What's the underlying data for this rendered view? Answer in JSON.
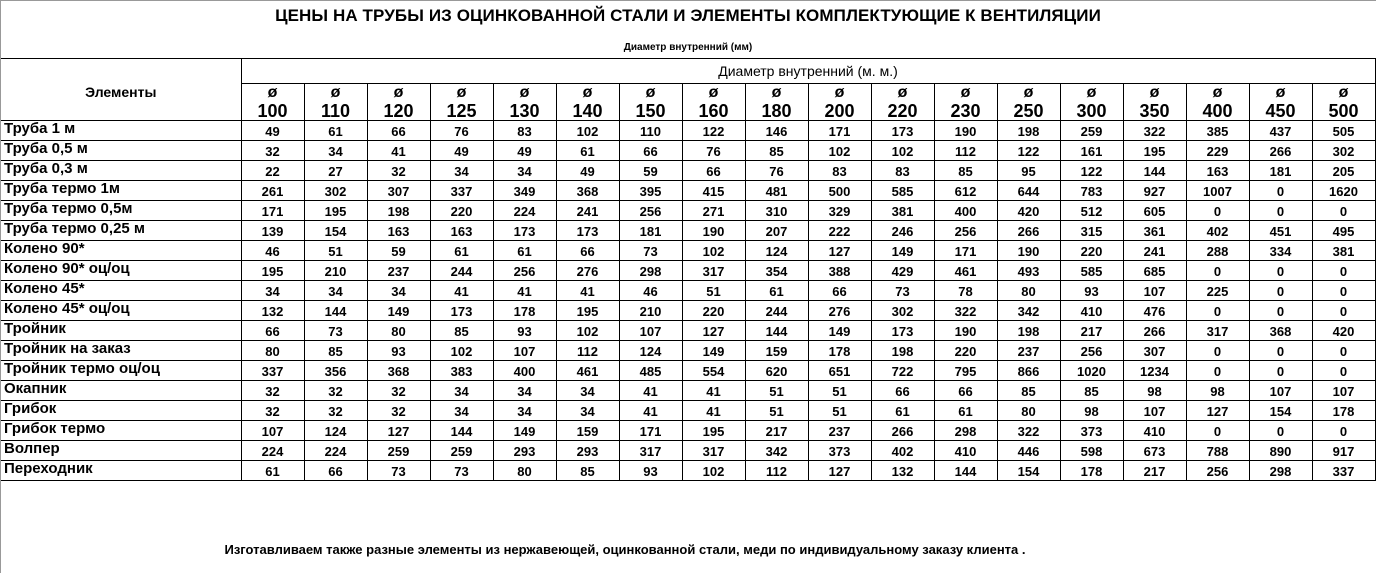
{
  "title": "ЦЕНЫ НА ТРУБЫ ИЗ ОЦИНКОВАННОЙ СТАЛИ И ЭЛЕМЕНТЫ КОМПЛЕКТУЮЩИЕ К ВЕНТИЛЯЦИИ",
  "subtitle": "Диаметр внутренний (мм)",
  "table": {
    "elements_header": "Элементы",
    "group_header": "Диаметр внутренний (м. м.)",
    "diameter_symbol": "ø",
    "diameters": [
      "100",
      "110",
      "120",
      "125",
      "130",
      "140",
      "150",
      "160",
      "180",
      "200",
      "220",
      "230",
      "250",
      "300",
      "350",
      "400",
      "450",
      "500"
    ],
    "rows": [
      {
        "name": "Труба 1 м",
        "values": [
          "49",
          "61",
          "66",
          "76",
          "83",
          "102",
          "110",
          "122",
          "146",
          "171",
          "173",
          "190",
          "198",
          "259",
          "322",
          "385",
          "437",
          "505"
        ]
      },
      {
        "name": "Труба 0,5 м",
        "values": [
          "32",
          "34",
          "41",
          "49",
          "49",
          "61",
          "66",
          "76",
          "85",
          "102",
          "102",
          "112",
          "122",
          "161",
          "195",
          "229",
          "266",
          "302"
        ]
      },
      {
        "name": "Труба 0,3 м",
        "values": [
          "22",
          "27",
          "32",
          "34",
          "34",
          "49",
          "59",
          "66",
          "76",
          "83",
          "83",
          "85",
          "95",
          "122",
          "144",
          "163",
          "181",
          "205"
        ]
      },
      {
        "name": "Труба термо 1м",
        "values": [
          "261",
          "302",
          "307",
          "337",
          "349",
          "368",
          "395",
          "415",
          "481",
          "500",
          "585",
          "612",
          "644",
          "783",
          "927",
          "1007",
          "0",
          "1620"
        ]
      },
      {
        "name": "Труба термо 0,5м",
        "values": [
          "171",
          "195",
          "198",
          "220",
          "224",
          "241",
          "256",
          "271",
          "310",
          "329",
          "381",
          "400",
          "420",
          "512",
          "605",
          "0",
          "0",
          "0"
        ]
      },
      {
        "name": "Труба термо 0,25 м",
        "values": [
          "139",
          "154",
          "163",
          "163",
          "173",
          "173",
          "181",
          "190",
          "207",
          "222",
          "246",
          "256",
          "266",
          "315",
          "361",
          "402",
          "451",
          "495"
        ]
      },
      {
        "name": "Колено 90*",
        "values": [
          "46",
          "51",
          "59",
          "61",
          "61",
          "66",
          "73",
          "102",
          "124",
          "127",
          "149",
          "171",
          "190",
          "220",
          "241",
          "288",
          "334",
          "381"
        ]
      },
      {
        "name": "Колено 90* оц/оц",
        "values": [
          "195",
          "210",
          "237",
          "244",
          "256",
          "276",
          "298",
          "317",
          "354",
          "388",
          "429",
          "461",
          "493",
          "585",
          "685",
          "0",
          "0",
          "0"
        ]
      },
      {
        "name": "Колено 45*",
        "values": [
          "34",
          "34",
          "34",
          "41",
          "41",
          "41",
          "46",
          "51",
          "61",
          "66",
          "73",
          "78",
          "80",
          "93",
          "107",
          "225",
          "0",
          "0"
        ]
      },
      {
        "name": "Колено 45* оц/оц",
        "values": [
          "132",
          "144",
          "149",
          "173",
          "178",
          "195",
          "210",
          "220",
          "244",
          "276",
          "302",
          "322",
          "342",
          "410",
          "476",
          "0",
          "0",
          "0"
        ]
      },
      {
        "name": "Тройник",
        "values": [
          "66",
          "73",
          "80",
          "85",
          "93",
          "102",
          "107",
          "127",
          "144",
          "149",
          "173",
          "190",
          "198",
          "217",
          "266",
          "317",
          "368",
          "420"
        ]
      },
      {
        "name": "Тройник на заказ",
        "values": [
          "80",
          "85",
          "93",
          "102",
          "107",
          "112",
          "124",
          "149",
          "159",
          "178",
          "198",
          "220",
          "237",
          "256",
          "307",
          "0",
          "0",
          "0"
        ]
      },
      {
        "name": "Тройник термо оц/оц",
        "values": [
          "337",
          "356",
          "368",
          "383",
          "400",
          "461",
          "485",
          "554",
          "620",
          "651",
          "722",
          "795",
          "866",
          "1020",
          "1234",
          "0",
          "0",
          "0"
        ]
      },
      {
        "name": "Окапник",
        "values": [
          "32",
          "32",
          "32",
          "34",
          "34",
          "34",
          "41",
          "41",
          "51",
          "51",
          "66",
          "66",
          "85",
          "85",
          "98",
          "98",
          "107",
          "107"
        ]
      },
      {
        "name": "Грибок",
        "values": [
          "32",
          "32",
          "32",
          "34",
          "34",
          "34",
          "41",
          "41",
          "51",
          "51",
          "61",
          "61",
          "80",
          "98",
          "107",
          "127",
          "154",
          "178"
        ]
      },
      {
        "name": "Грибок термо",
        "values": [
          "107",
          "124",
          "127",
          "144",
          "149",
          "159",
          "171",
          "195",
          "217",
          "237",
          "266",
          "298",
          "322",
          "373",
          "410",
          "0",
          "0",
          "0"
        ]
      },
      {
        "name": "Волпер",
        "values": [
          "224",
          "224",
          "259",
          "259",
          "293",
          "293",
          "317",
          "317",
          "342",
          "373",
          "402",
          "410",
          "446",
          "598",
          "673",
          "788",
          "890",
          "917"
        ]
      },
      {
        "name": "Переходник",
        "values": [
          "61",
          "66",
          "73",
          "73",
          "80",
          "85",
          "93",
          "102",
          "112",
          "127",
          "132",
          "144",
          "154",
          "178",
          "217",
          "256",
          "298",
          "337"
        ]
      }
    ]
  },
  "footer_note": "Изготавливаем также разные элементы из нержавеющей, оцинкованной стали, меди по индивидуальному заказу клиента ."
}
